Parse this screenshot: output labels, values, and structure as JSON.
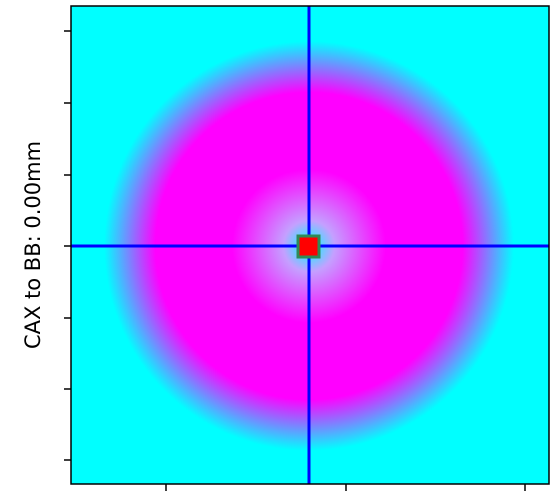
{
  "chart_data": {
    "type": "heatmap",
    "ylabel": "CAX to BB: 0.00mm",
    "xlabel": "",
    "title": "",
    "colormap": [
      "#00ffff",
      "#ff00ff"
    ],
    "pattern": "radial ring, low at center and edges, high in the ring",
    "crosshair_color": "#0000ff",
    "center_marker": {
      "fill": "#ff0000",
      "edge": "#2e8b57"
    },
    "grid": false
  }
}
